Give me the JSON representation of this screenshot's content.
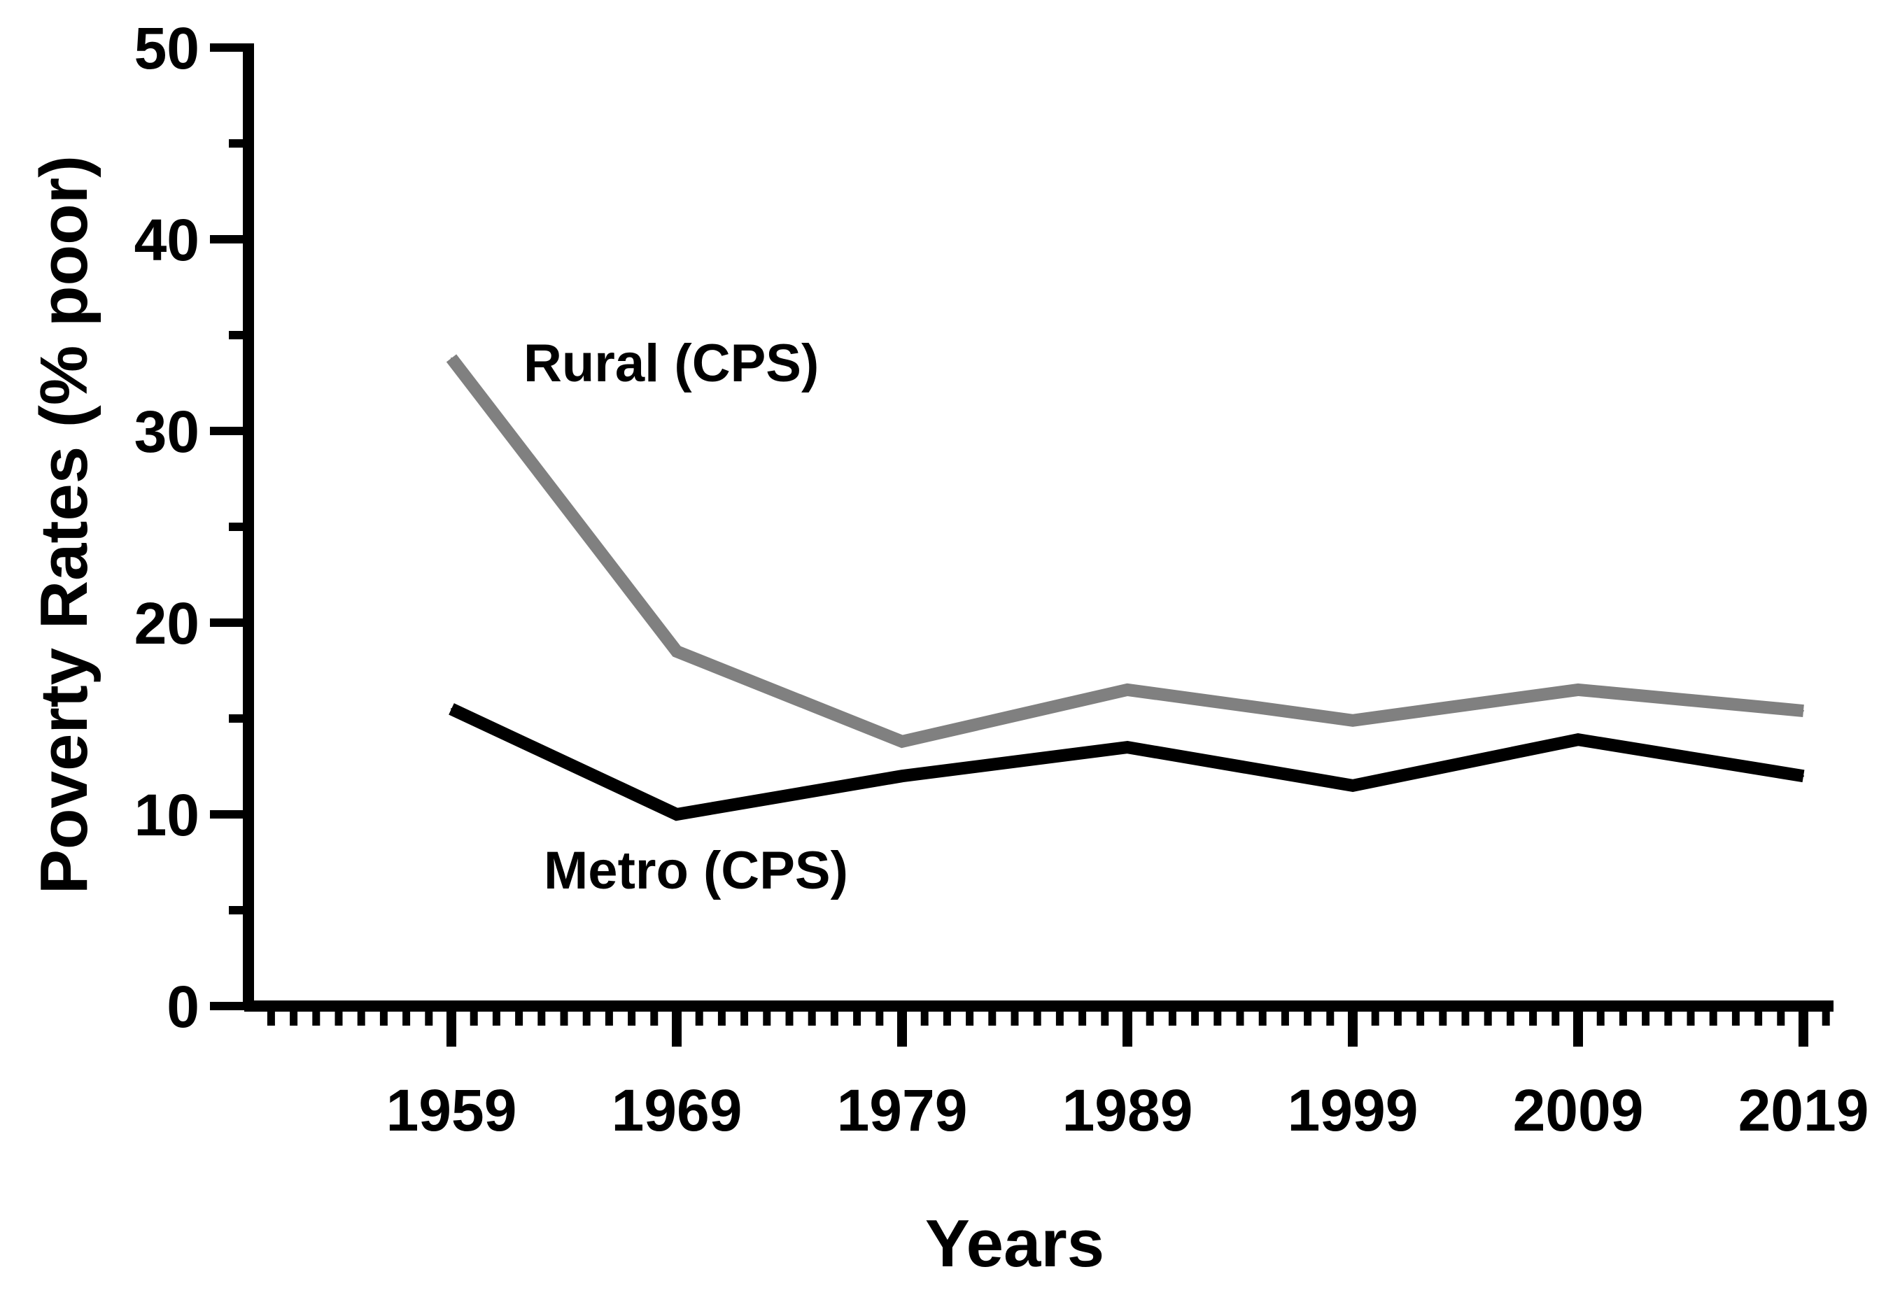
{
  "chart_data": {
    "type": "line",
    "xlabel": "Years",
    "ylabel": "Poverty Rates (% poor)",
    "ylim": [
      0,
      50
    ],
    "xlim": [
      1951,
      2020
    ],
    "yticks": [
      0,
      10,
      20,
      30,
      40,
      50
    ],
    "xticks": [
      1959,
      1969,
      1979,
      1989,
      1999,
      2009,
      2019
    ],
    "grid": false,
    "x": [
      1959,
      1969,
      1979,
      1989,
      1999,
      2009,
      2019
    ],
    "series": [
      {
        "name": "Rural (CPS)",
        "color": "#808080",
        "values": [
          33.8,
          18.5,
          13.8,
          16.5,
          14.9,
          16.5,
          15.4
        ]
      },
      {
        "name": "Metro (CPS)",
        "color": "#000000",
        "values": [
          15.5,
          10.0,
          12.0,
          13.5,
          11.5,
          13.9,
          12.0
        ]
      }
    ]
  }
}
